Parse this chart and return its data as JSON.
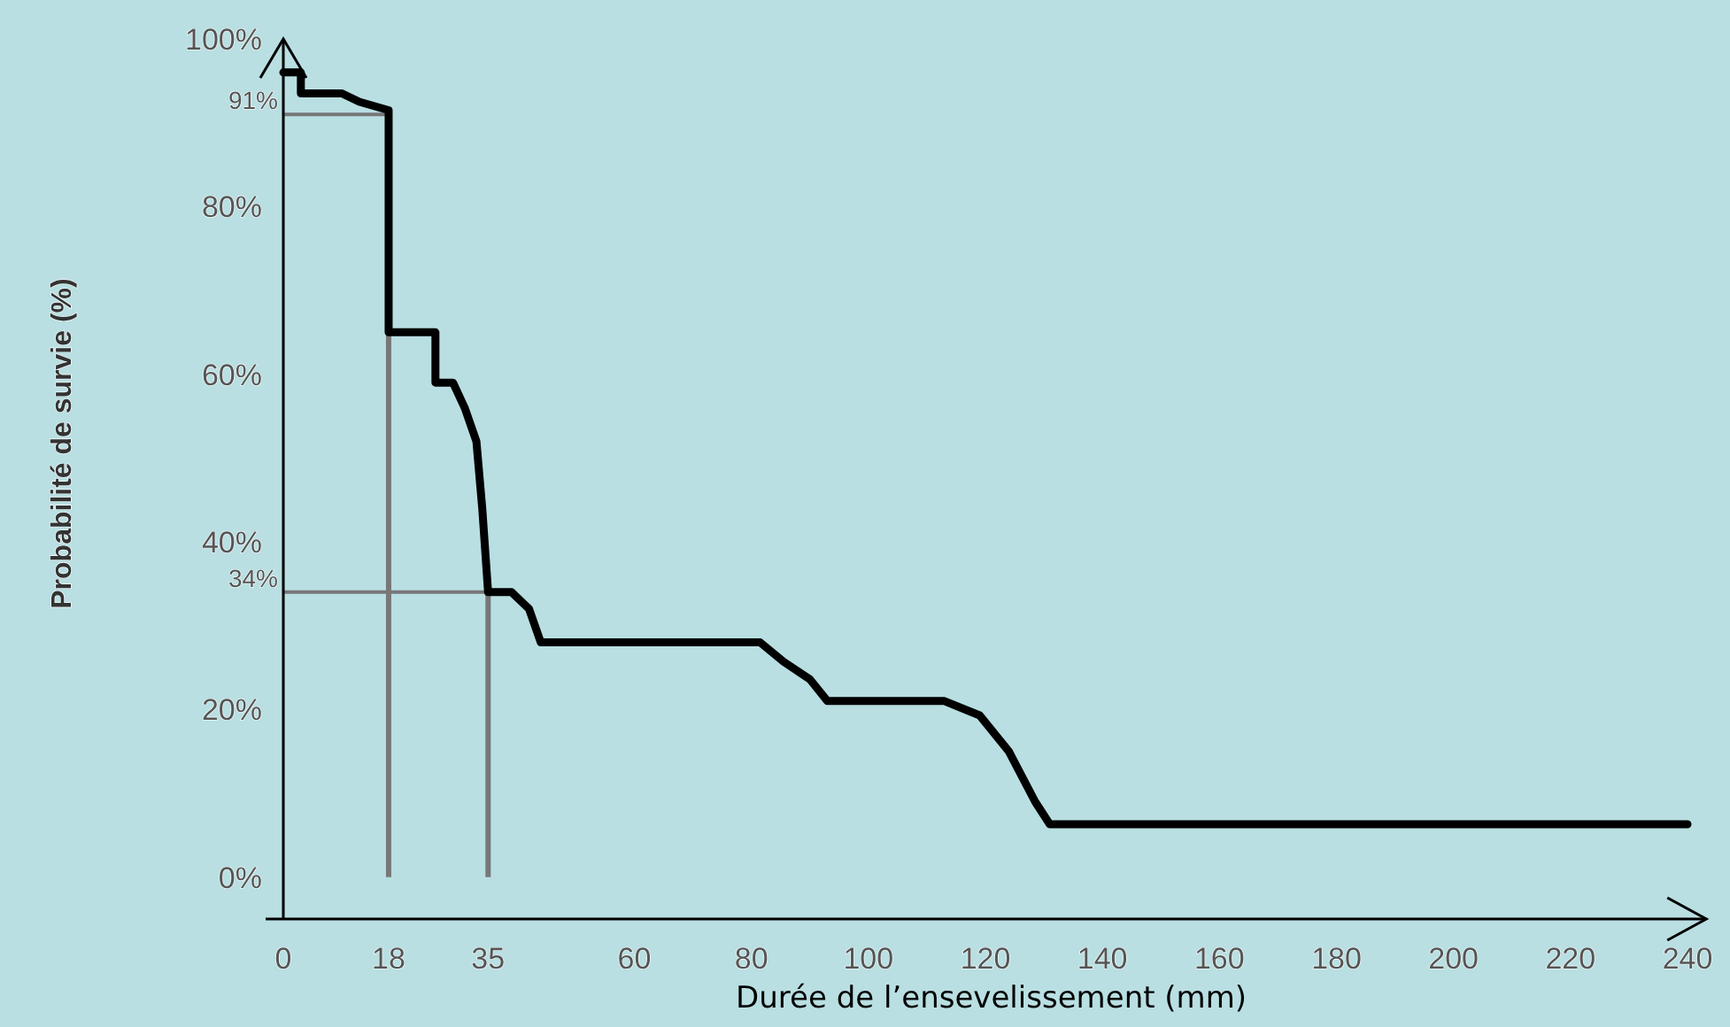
{
  "chart_data": {
    "type": "line",
    "xlabel": "Durée de l’ensevelissement (mm)",
    "ylabel": "Probabilité de survie (%)",
    "xlim": [
      0,
      242
    ],
    "xticks": [
      0,
      18,
      35,
      60,
      80,
      100,
      120,
      140,
      160,
      180,
      200,
      220,
      240
    ],
    "ylim": [
      -5,
      100
    ],
    "yticks": [
      {
        "value": 0,
        "label": "0%"
      },
      {
        "value": 20,
        "label": "20%"
      },
      {
        "value": 40,
        "label": "40%"
      },
      {
        "value": 60,
        "label": "60%"
      },
      {
        "value": 80,
        "label": "80%"
      },
      {
        "value": 100,
        "label": "100%"
      }
    ],
    "marker": "none",
    "line_style": "solid",
    "series": [
      {
        "color": "#000000",
        "x": [
          0,
          3,
          3,
          10,
          13,
          18,
          18,
          26,
          26,
          29,
          31,
          33,
          34,
          35,
          39,
          42,
          44,
          81.5,
          85.5,
          90,
          93,
          113,
          119,
          124,
          128.5,
          131,
          240
        ],
        "values": [
          96,
          96,
          93.5,
          93.5,
          92.5,
          91.5,
          65,
          65,
          59,
          59,
          56,
          52,
          44,
          34,
          34,
          32,
          28,
          28,
          25.7,
          23.6,
          21,
          21,
          19.3,
          15,
          9,
          6.3,
          6.3
        ]
      }
    ],
    "ref_lines": [
      {
        "axis": "y",
        "value": 91,
        "label": "91%",
        "color": "#777777"
      },
      {
        "axis": "y",
        "value": 34,
        "label": "34%",
        "color": "#777777"
      },
      {
        "axis": "x",
        "value": 18,
        "color": "#777777"
      },
      {
        "axis": "x",
        "value": 35,
        "color": "#777777"
      }
    ]
  }
}
